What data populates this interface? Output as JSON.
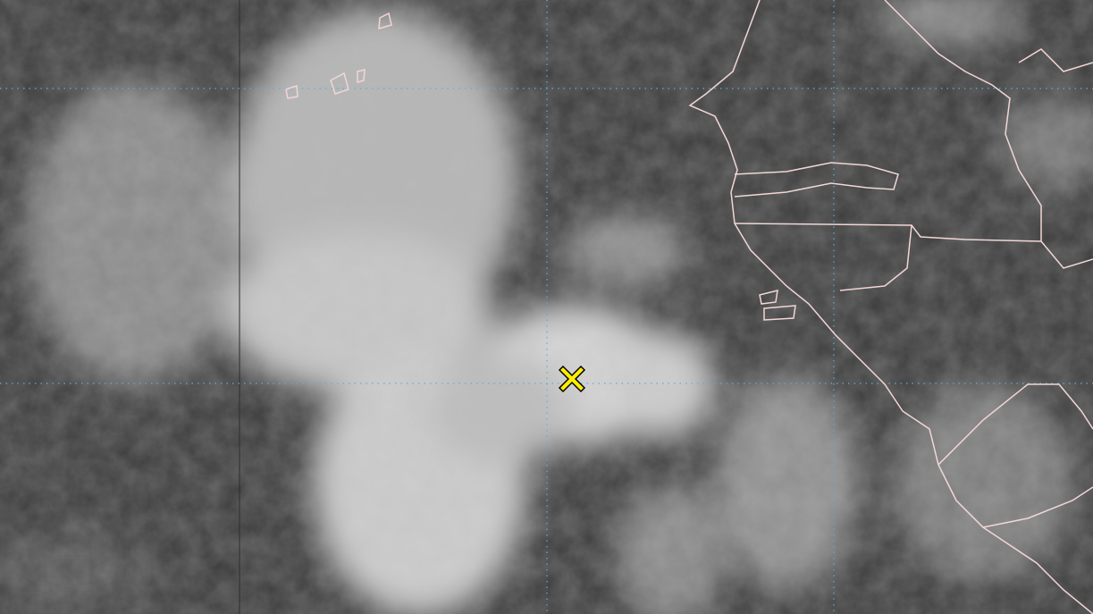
{
  "map": {
    "type": "infrared satellite imagery",
    "colors": {
      "background": "#3c3c3c",
      "cloud": "#d8d8d8",
      "gridline": "#4fb3d9",
      "coastline": "#f2d6d6",
      "marker": "#ffee00",
      "marker_outline": "#000000"
    },
    "marker": {
      "icon": "x-mark-icon"
    }
  }
}
